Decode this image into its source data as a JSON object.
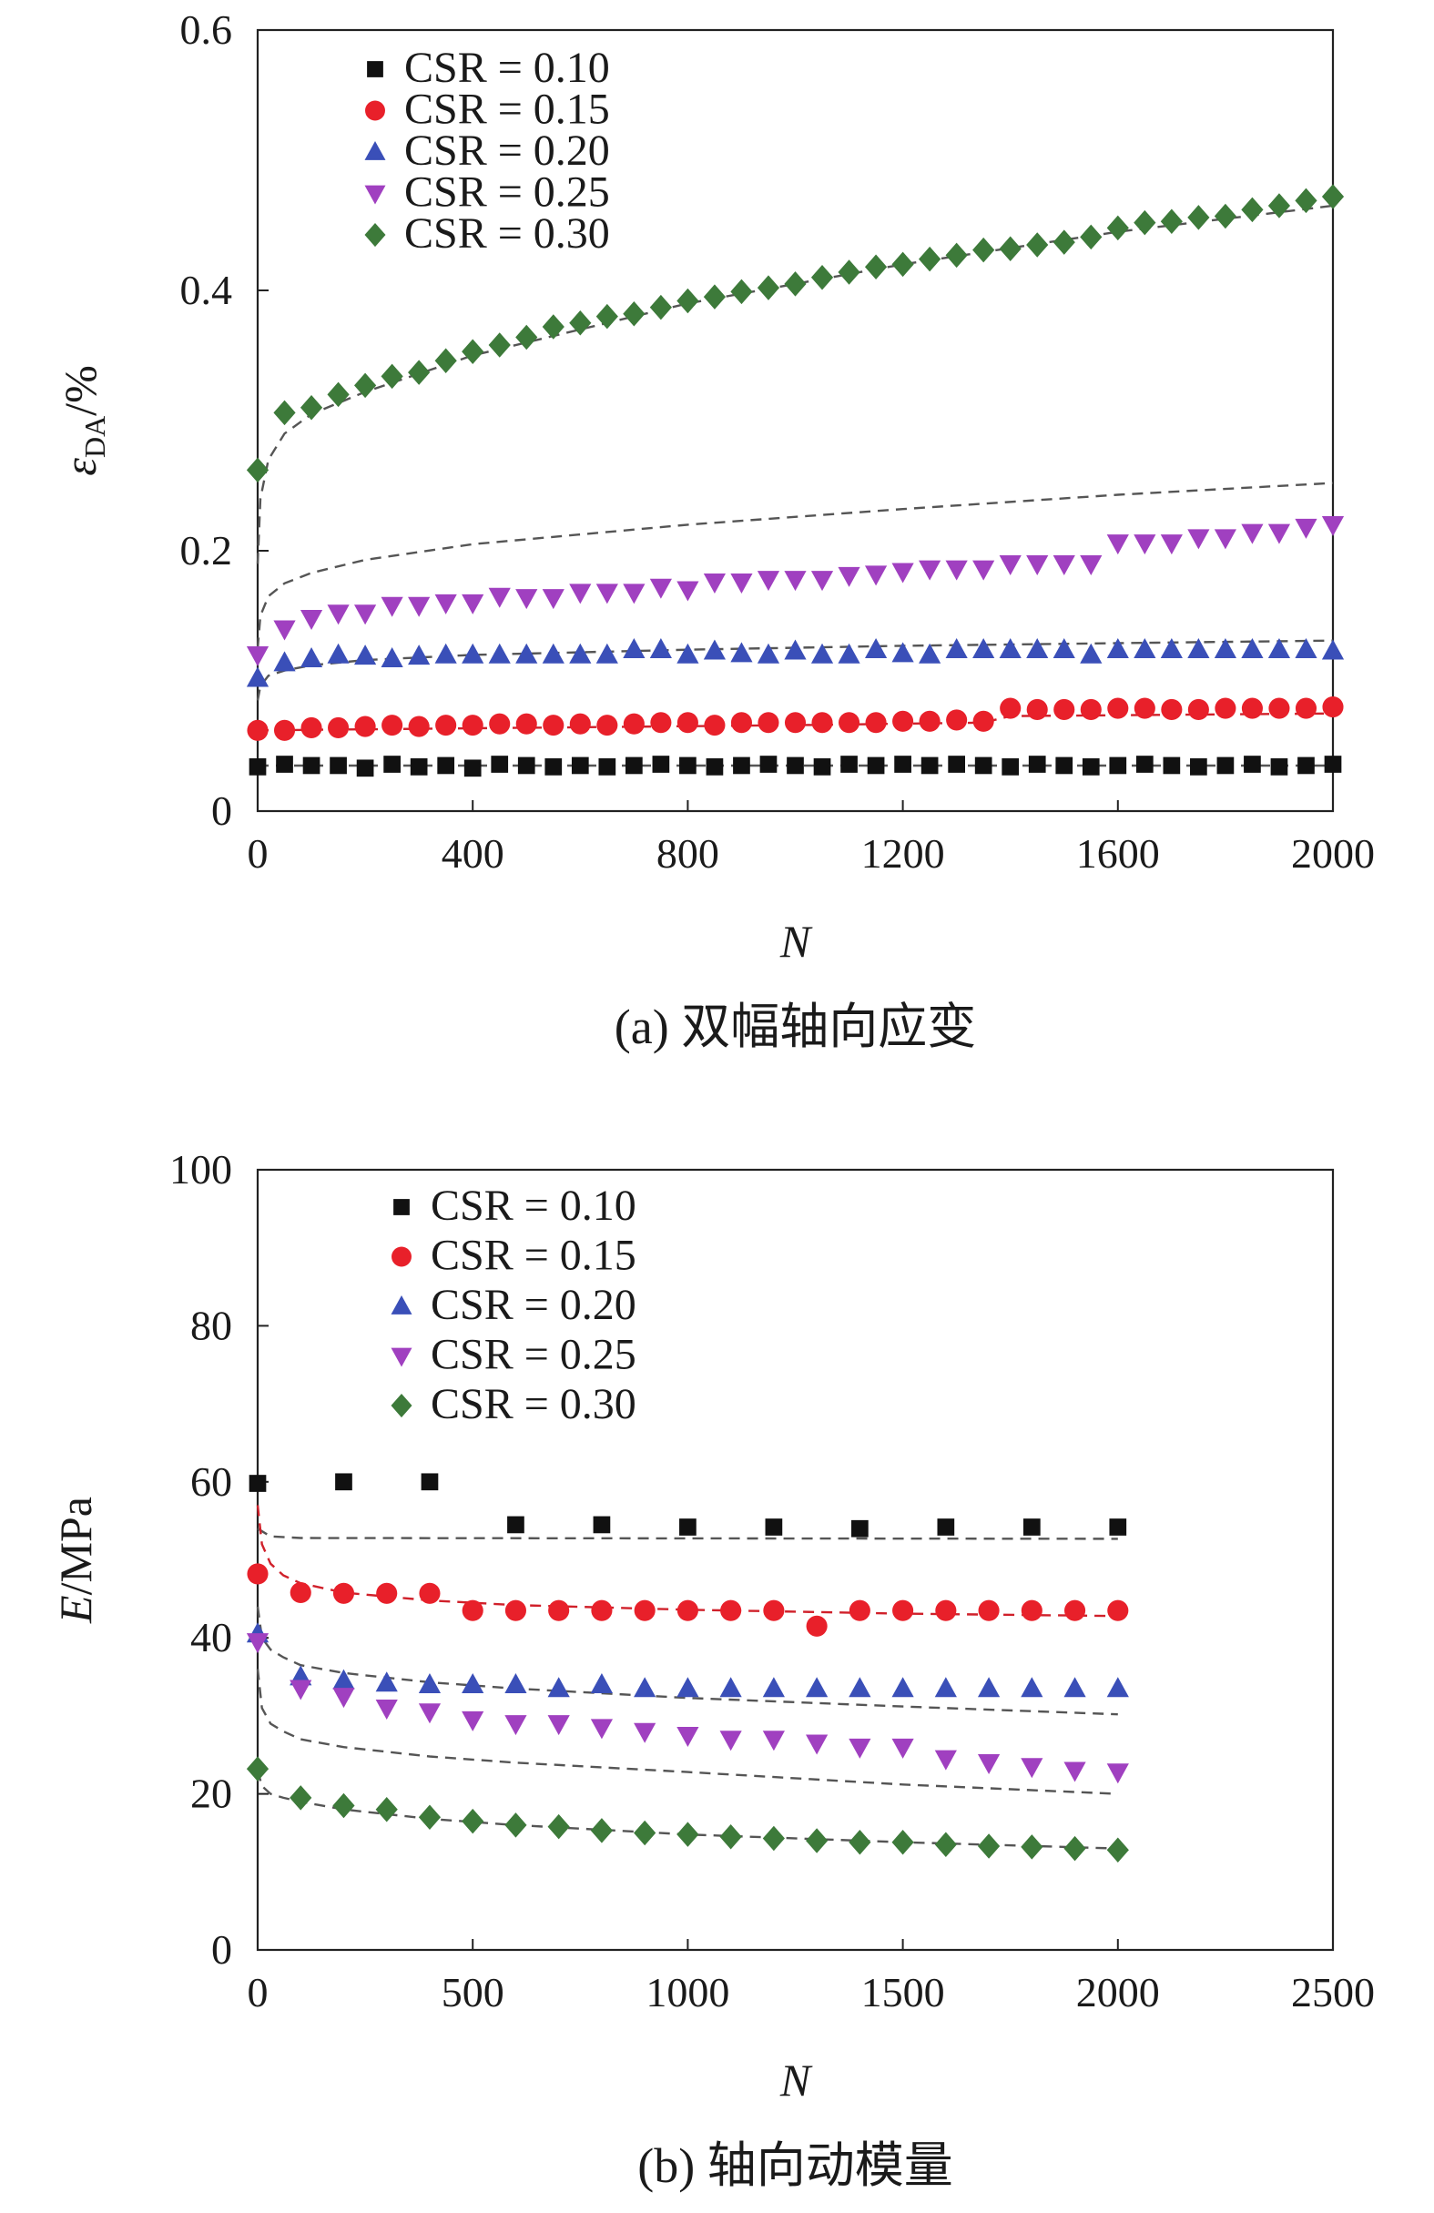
{
  "chart_data": [
    {
      "type": "scatter",
      "caption": "(a) 双幅轴向应变",
      "ylabel_symbol": "ε",
      "ylabel_sub": "DA",
      "ylabel_unit": "/%",
      "xlabel": "N",
      "xlim": [
        0,
        2000
      ],
      "ylim": [
        0,
        0.6
      ],
      "xticks": [
        0,
        400,
        800,
        1200,
        1600,
        2000
      ],
      "yticks": [
        0,
        0.2,
        0.4,
        0.6
      ],
      "xtick_labels": [
        "0",
        "400",
        "800",
        "1200",
        "1600",
        "2000"
      ],
      "ytick_labels": [
        "0",
        "0.2",
        "0.4",
        "0.6"
      ],
      "legend_position": "top-left",
      "series": [
        {
          "name": "CSR = 0.10",
          "marker": "square",
          "color": "#111111",
          "x": [
            0,
            50,
            100,
            150,
            200,
            250,
            300,
            350,
            400,
            450,
            500,
            550,
            600,
            650,
            700,
            750,
            800,
            850,
            900,
            950,
            1000,
            1050,
            1100,
            1150,
            1200,
            1250,
            1300,
            1350,
            1400,
            1450,
            1500,
            1550,
            1600,
            1650,
            1700,
            1750,
            1800,
            1850,
            1900,
            1950,
            2000
          ],
          "y": [
            0.034,
            0.036,
            0.035,
            0.035,
            0.033,
            0.036,
            0.034,
            0.035,
            0.033,
            0.036,
            0.035,
            0.034,
            0.035,
            0.034,
            0.035,
            0.036,
            0.035,
            0.034,
            0.035,
            0.036,
            0.035,
            0.034,
            0.036,
            0.035,
            0.036,
            0.035,
            0.036,
            0.035,
            0.034,
            0.036,
            0.035,
            0.034,
            0.035,
            0.036,
            0.035,
            0.034,
            0.035,
            0.036,
            0.034,
            0.035,
            0.036
          ]
        },
        {
          "name": "CSR = 0.15",
          "marker": "circle",
          "color": "#e8202a",
          "x": [
            0,
            50,
            100,
            150,
            200,
            250,
            300,
            350,
            400,
            450,
            500,
            550,
            600,
            650,
            700,
            750,
            800,
            850,
            900,
            950,
            1000,
            1050,
            1100,
            1150,
            1200,
            1250,
            1300,
            1350,
            1400,
            1450,
            1500,
            1550,
            1600,
            1650,
            1700,
            1750,
            1800,
            1850,
            1900,
            1950,
            2000
          ],
          "y": [
            0.062,
            0.062,
            0.064,
            0.064,
            0.065,
            0.066,
            0.065,
            0.066,
            0.066,
            0.067,
            0.067,
            0.066,
            0.067,
            0.066,
            0.067,
            0.068,
            0.068,
            0.066,
            0.068,
            0.068,
            0.068,
            0.068,
            0.068,
            0.068,
            0.069,
            0.069,
            0.07,
            0.069,
            0.079,
            0.078,
            0.078,
            0.078,
            0.079,
            0.079,
            0.078,
            0.078,
            0.079,
            0.079,
            0.079,
            0.079,
            0.08
          ]
        },
        {
          "name": "CSR = 0.20",
          "marker": "triangle-up",
          "color": "#3a4fb8",
          "x": [
            0,
            50,
            100,
            150,
            200,
            250,
            300,
            350,
            400,
            450,
            500,
            550,
            600,
            650,
            700,
            750,
            800,
            850,
            900,
            950,
            1000,
            1050,
            1100,
            1150,
            1200,
            1250,
            1300,
            1350,
            1400,
            1450,
            1500,
            1550,
            1600,
            1650,
            1700,
            1750,
            1800,
            1850,
            1900,
            1950,
            2000
          ],
          "y": [
            0.102,
            0.114,
            0.117,
            0.12,
            0.119,
            0.117,
            0.119,
            0.12,
            0.12,
            0.12,
            0.12,
            0.12,
            0.12,
            0.12,
            0.124,
            0.124,
            0.12,
            0.123,
            0.121,
            0.12,
            0.123,
            0.12,
            0.12,
            0.124,
            0.121,
            0.12,
            0.124,
            0.124,
            0.124,
            0.124,
            0.124,
            0.12,
            0.124,
            0.124,
            0.124,
            0.124,
            0.124,
            0.124,
            0.124,
            0.124,
            0.123
          ]
        },
        {
          "name": "CSR = 0.25",
          "marker": "triangle-down",
          "color": "#a040c0",
          "x": [
            0,
            50,
            100,
            150,
            200,
            250,
            300,
            350,
            400,
            450,
            500,
            550,
            600,
            650,
            700,
            750,
            800,
            850,
            900,
            950,
            1000,
            1050,
            1100,
            1150,
            1200,
            1250,
            1300,
            1350,
            1400,
            1450,
            1500,
            1550,
            1600,
            1650,
            1700,
            1750,
            1800,
            1850,
            1900,
            1950,
            2000
          ],
          "y": [
            0.12,
            0.14,
            0.148,
            0.152,
            0.152,
            0.158,
            0.158,
            0.16,
            0.16,
            0.165,
            0.164,
            0.164,
            0.168,
            0.168,
            0.168,
            0.172,
            0.17,
            0.176,
            0.176,
            0.178,
            0.178,
            0.178,
            0.181,
            0.182,
            0.184,
            0.186,
            0.186,
            0.186,
            0.19,
            0.19,
            0.19,
            0.19,
            0.206,
            0.206,
            0.206,
            0.21,
            0.21,
            0.214,
            0.214,
            0.218,
            0.22
          ]
        },
        {
          "name": "CSR = 0.30",
          "marker": "diamond",
          "color": "#3d7a3a",
          "x": [
            0,
            50,
            100,
            150,
            200,
            250,
            300,
            350,
            400,
            450,
            500,
            550,
            600,
            650,
            700,
            750,
            800,
            850,
            900,
            950,
            1000,
            1050,
            1100,
            1150,
            1200,
            1250,
            1300,
            1350,
            1400,
            1450,
            1500,
            1550,
            1600,
            1650,
            1700,
            1750,
            1800,
            1850,
            1900,
            1950,
            2000
          ],
          "y": [
            0.262,
            0.306,
            0.31,
            0.32,
            0.327,
            0.334,
            0.337,
            0.346,
            0.353,
            0.358,
            0.364,
            0.372,
            0.375,
            0.38,
            0.382,
            0.387,
            0.392,
            0.395,
            0.399,
            0.402,
            0.405,
            0.41,
            0.414,
            0.418,
            0.42,
            0.424,
            0.427,
            0.431,
            0.432,
            0.435,
            0.437,
            0.441,
            0.448,
            0.452,
            0.453,
            0.456,
            0.457,
            0.462,
            0.465,
            0.469,
            0.472
          ]
        }
      ],
      "fits": [
        {
          "series": "CSR = 0.10",
          "x": [
            0,
            2000
          ],
          "y": [
            0.035,
            0.035
          ],
          "color": "#555555"
        },
        {
          "series": "CSR = 0.15",
          "x": [
            0,
            1000,
            1350,
            1400,
            2000
          ],
          "y": [
            0.062,
            0.066,
            0.068,
            0.073,
            0.075
          ],
          "color": "#d0202a"
        },
        {
          "series": "CSR = 0.20",
          "x": [
            0,
            5,
            20,
            50,
            100,
            200,
            400,
            800,
            1200,
            1600,
            2000
          ],
          "y": [
            0.085,
            0.096,
            0.104,
            0.108,
            0.112,
            0.116,
            0.12,
            0.124,
            0.127,
            0.129,
            0.131
          ],
          "color": "#555555"
        },
        {
          "series": "CSR = 0.25",
          "x": [
            0,
            5,
            20,
            50,
            100,
            200,
            400,
            800,
            1200,
            1600,
            2000
          ],
          "y": [
            0.125,
            0.15,
            0.165,
            0.175,
            0.183,
            0.193,
            0.205,
            0.22,
            0.232,
            0.243,
            0.252
          ],
          "color": "#555555"
        },
        {
          "series": "CSR = 0.30",
          "x": [
            0,
            5,
            20,
            50,
            100,
            200,
            400,
            800,
            1200,
            1600,
            2000
          ],
          "y": [
            0.19,
            0.24,
            0.27,
            0.29,
            0.305,
            0.322,
            0.35,
            0.39,
            0.42,
            0.445,
            0.465
          ],
          "color": "#555555"
        }
      ]
    },
    {
      "type": "scatter",
      "caption": "(b) 轴向动模量",
      "ylabel_symbol": "E",
      "ylabel_unit": "/MPa",
      "xlabel": "N",
      "xlim": [
        0,
        2500
      ],
      "ylim": [
        0,
        100
      ],
      "xticks": [
        0,
        500,
        1000,
        1500,
        2000,
        2500
      ],
      "yticks": [
        0,
        20,
        40,
        60,
        80,
        100
      ],
      "xtick_labels": [
        "0",
        "500",
        "1000",
        "1500",
        "2000",
        "2500"
      ],
      "ytick_labels": [
        "0",
        "20",
        "40",
        "60",
        "80",
        "100"
      ],
      "legend_position": "top-left",
      "series": [
        {
          "name": "CSR = 0.10",
          "marker": "square",
          "color": "#111111",
          "x": [
            0,
            200,
            400,
            600,
            800,
            1000,
            1200,
            1400,
            1600,
            1800,
            2000
          ],
          "y": [
            59.8,
            60,
            60,
            54.5,
            54.5,
            54.2,
            54.2,
            54,
            54.2,
            54.2,
            54.2
          ]
        },
        {
          "name": "CSR = 0.15",
          "marker": "circle",
          "color": "#e8202a",
          "x": [
            0,
            100,
            200,
            300,
            400,
            500,
            600,
            700,
            800,
            900,
            1000,
            1100,
            1200,
            1300,
            1400,
            1500,
            1600,
            1700,
            1800,
            1900,
            2000
          ],
          "y": [
            48.2,
            45.8,
            45.7,
            45.7,
            45.7,
            43.5,
            43.5,
            43.5,
            43.5,
            43.5,
            43.5,
            43.5,
            43.5,
            41.5,
            43.5,
            43.5,
            43.5,
            43.5,
            43.5,
            43.5,
            43.5
          ]
        },
        {
          "name": "CSR = 0.20",
          "marker": "triangle-up",
          "color": "#3a4fb8",
          "x": [
            0,
            100,
            200,
            300,
            400,
            500,
            600,
            700,
            800,
            900,
            1000,
            1100,
            1200,
            1300,
            1400,
            1500,
            1600,
            1700,
            1800,
            1900,
            2000
          ],
          "y": [
            40.5,
            35,
            34.5,
            34.2,
            34,
            34,
            34,
            33.5,
            34,
            33.5,
            33.5,
            33.5,
            33.5,
            33.5,
            33.5,
            33.5,
            33.5,
            33.5,
            33.5,
            33.5,
            33.5
          ]
        },
        {
          "name": "CSR = 0.25",
          "marker": "triangle-down",
          "color": "#a040c0",
          "x": [
            0,
            100,
            200,
            300,
            400,
            500,
            600,
            700,
            800,
            900,
            1000,
            1100,
            1200,
            1300,
            1400,
            1500,
            1600,
            1700,
            1800,
            1900,
            2000
          ],
          "y": [
            39.5,
            33.5,
            32.5,
            31,
            30.5,
            29.5,
            29,
            29,
            28.5,
            28,
            27.5,
            27,
            27,
            26.5,
            26,
            26,
            24.5,
            24,
            23.5,
            23,
            22.8
          ]
        },
        {
          "name": "CSR = 0.30",
          "marker": "diamond",
          "color": "#3d7a3a",
          "x": [
            0,
            100,
            200,
            300,
            400,
            500,
            600,
            700,
            800,
            900,
            1000,
            1100,
            1200,
            1300,
            1400,
            1500,
            1600,
            1700,
            1800,
            1900,
            2000
          ],
          "y": [
            23.2,
            19.5,
            18.5,
            18,
            17,
            16.5,
            16,
            15.8,
            15.3,
            15,
            14.8,
            14.5,
            14.3,
            14,
            13.8,
            13.8,
            13.5,
            13.3,
            13.2,
            13,
            12.8
          ]
        }
      ],
      "fits": [
        {
          "series": "CSR = 0.10",
          "x": [
            0,
            30,
            100,
            2000
          ],
          "y": [
            54,
            53,
            52.8,
            52.7
          ],
          "color": "#555555"
        },
        {
          "series": "CSR = 0.15",
          "x": [
            0,
            10,
            30,
            60,
            100,
            200,
            400,
            600,
            1000,
            1500,
            2000
          ],
          "y": [
            57,
            52,
            49.5,
            48,
            47,
            45.8,
            44.8,
            44.2,
            43.6,
            43.1,
            42.8
          ],
          "color": "#d0202a"
        },
        {
          "series": "CSR = 0.20",
          "x": [
            0,
            10,
            30,
            60,
            100,
            200,
            400,
            600,
            1000,
            1500,
            2000
          ],
          "y": [
            44,
            40,
            38.5,
            37.5,
            36.5,
            35.5,
            34.3,
            33.5,
            32.3,
            31.2,
            30.2
          ],
          "color": "#555555"
        },
        {
          "series": "CSR = 0.25",
          "x": [
            0,
            10,
            30,
            60,
            100,
            200,
            400,
            600,
            1000,
            1500,
            2000
          ],
          "y": [
            36,
            31,
            29,
            28,
            27,
            26,
            24.8,
            24,
            22.8,
            21.2,
            20
          ],
          "color": "#555555"
        },
        {
          "series": "CSR = 0.30",
          "x": [
            0,
            10,
            30,
            60,
            100,
            200,
            400,
            600,
            1000,
            1500,
            2000
          ],
          "y": [
            23,
            21,
            20,
            19.5,
            19,
            18,
            16.8,
            16,
            14.8,
            13.8,
            13
          ],
          "color": "#555555"
        }
      ]
    }
  ]
}
